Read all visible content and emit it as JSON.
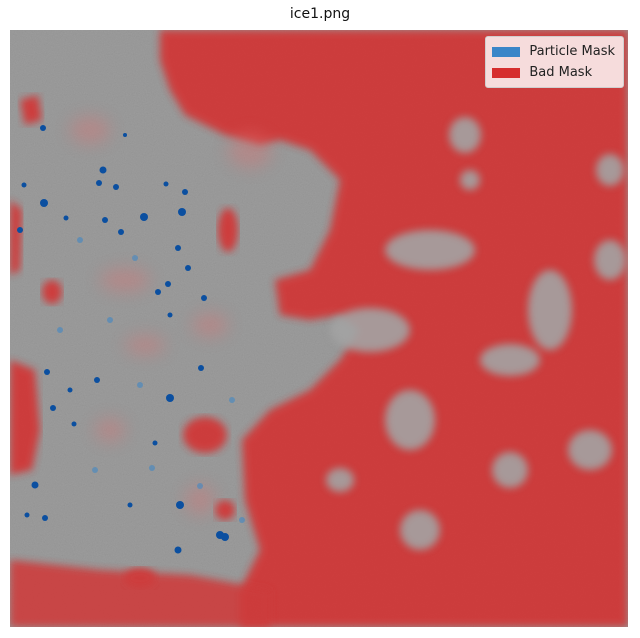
{
  "title": "ice1.png",
  "legend": {
    "items": [
      {
        "label": "Particle Mask",
        "color": "#3a86c8"
      },
      {
        "label": "Bad Mask",
        "color": "#d62d2d"
      }
    ]
  },
  "colors": {
    "ice_background": "#9a9a9a",
    "bad_mask": "#d62d2d",
    "particle_mask": "#0b4fa0"
  }
}
